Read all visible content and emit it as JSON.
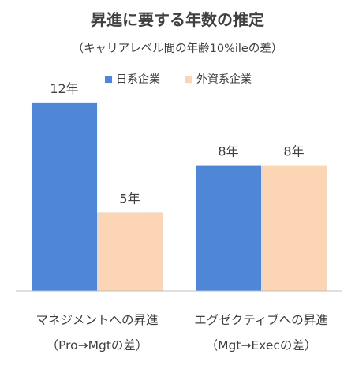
{
  "chart_data": {
    "type": "bar",
    "title": "昇進に要する年数の推定",
    "subtitle": "（キャリアレベル間の年齢10%ileの差）",
    "categories": [
      {
        "line1": "マネジメントへの昇進",
        "line2": "（Pro→Mgtの差）"
      },
      {
        "line1": "エグゼクティブへの昇進",
        "line2": "（Mgt→Execの差）"
      }
    ],
    "series": [
      {
        "name": "日系企業",
        "color": "#4f86d6",
        "values": [
          12,
          8
        ],
        "labels": [
          "12年",
          "8年"
        ]
      },
      {
        "name": "外資系企業",
        "color": "#fcd5b5",
        "values": [
          5,
          8
        ],
        "labels": [
          "5年",
          "8年"
        ]
      }
    ],
    "ylim": [
      0,
      14
    ],
    "grid": false,
    "legend_position": "top-left",
    "axis_color": "#bfbfbf",
    "text_color": "#404040",
    "title_color": "#404040"
  }
}
